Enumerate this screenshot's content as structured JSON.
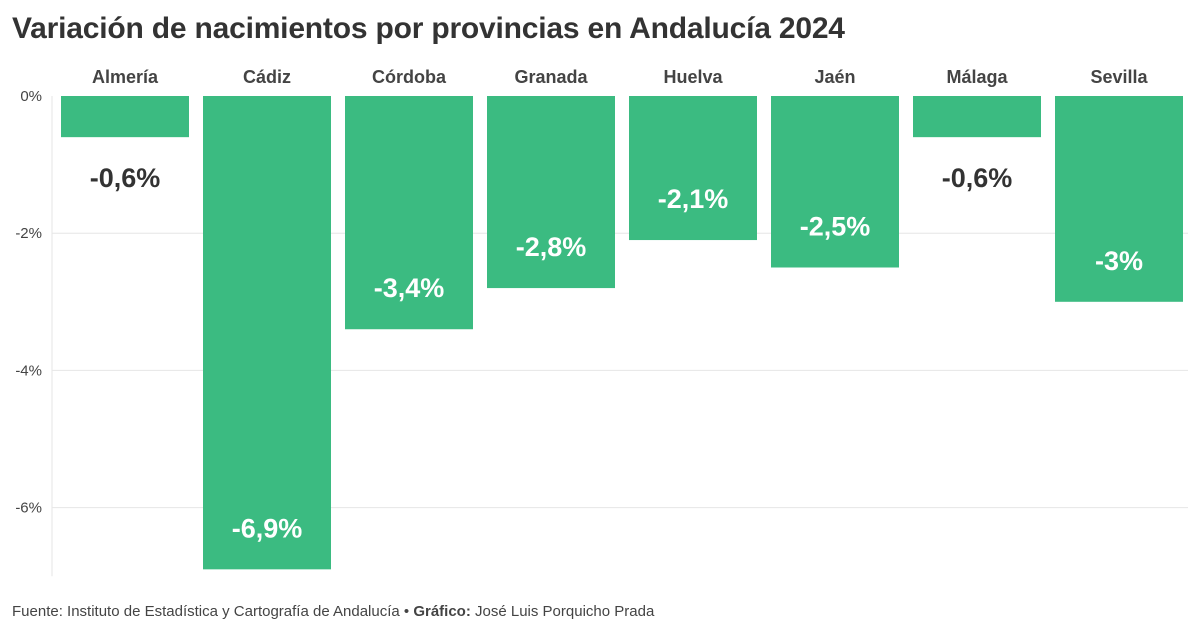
{
  "title": "Variación de nacimientos por provincias en Andalucía 2024",
  "footer": {
    "source": "Fuente: Instituto de Estadística y Cartografía de Andalucía",
    "separator": " • ",
    "credit_label": "Gráfico:",
    "credit_name": " José Luis Porquicho Prada"
  },
  "colors": {
    "bar": "#3bbb81",
    "label_inside": "#ffffff",
    "label_outside": "#333333",
    "grid": "#e6e6e6",
    "axis": "#444444"
  },
  "chart_data": {
    "type": "bar",
    "categories": [
      "Almería",
      "Cádiz",
      "Córdoba",
      "Granada",
      "Huelva",
      "Jaén",
      "Málaga",
      "Sevilla"
    ],
    "values": [
      -0.6,
      -6.9,
      -3.4,
      -2.8,
      -2.1,
      -2.5,
      -0.6,
      -3
    ],
    "data_labels": [
      "-0,6%",
      "-6,9%",
      "-3,4%",
      "-2,8%",
      "-2,1%",
      "-2,5%",
      "-0,6%",
      "-3%"
    ],
    "yticks": [
      0,
      -2,
      -4,
      -6
    ],
    "ytick_labels": [
      "0%",
      "-2%",
      "-4%",
      "-6%"
    ],
    "ylim": [
      -7,
      0
    ],
    "category_position": "top",
    "grid": true
  }
}
